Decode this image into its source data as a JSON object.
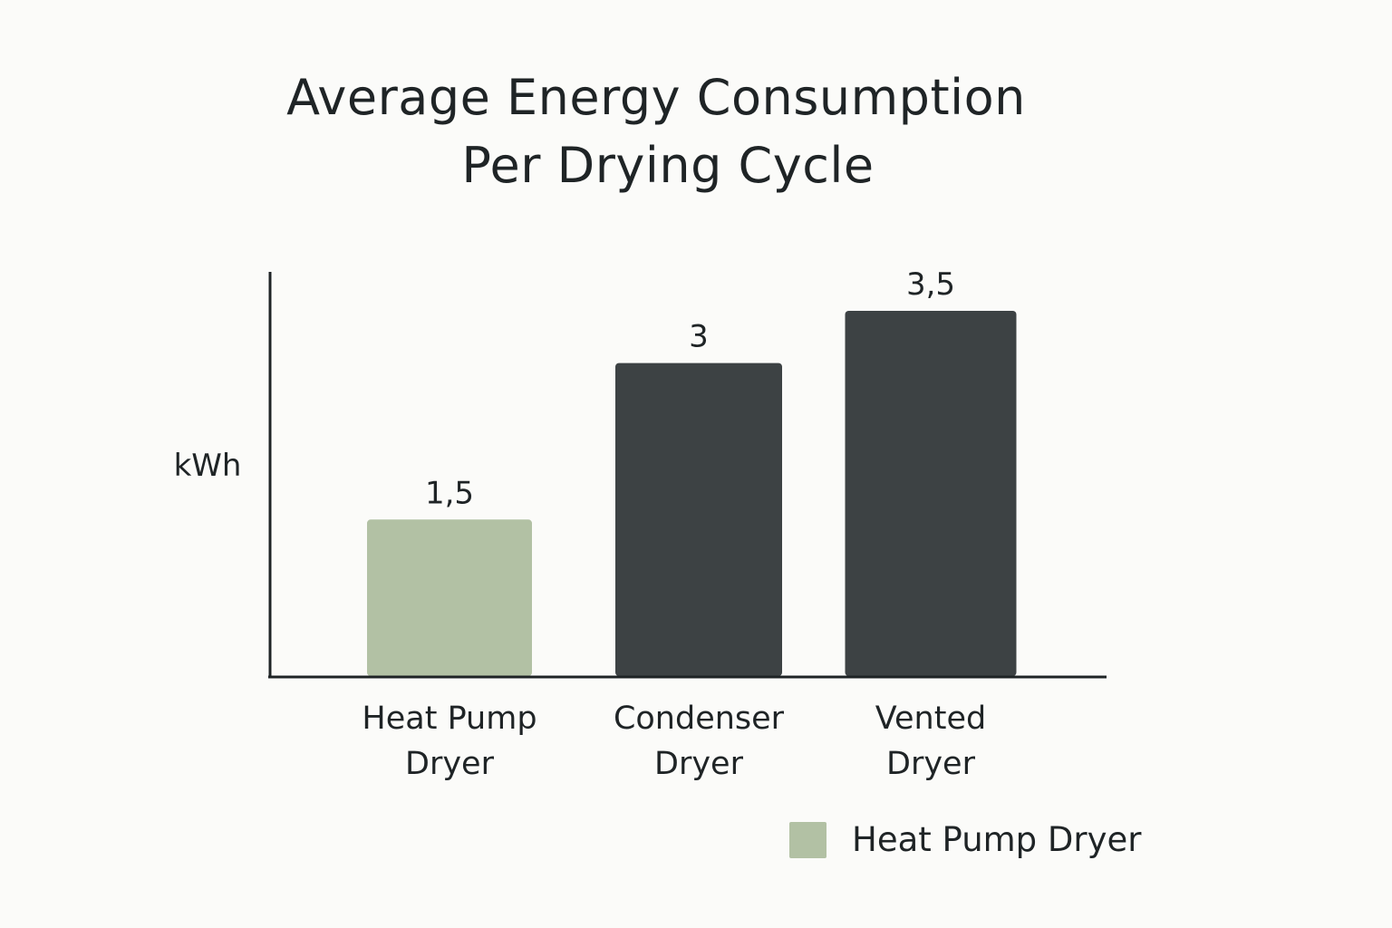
{
  "chart_data": {
    "type": "bar",
    "title": [
      "Average Energy Consumption",
      "Per Drying Cycle"
    ],
    "xlabel": "",
    "ylabel": "kWh",
    "categories": [
      [
        "Heat Pump",
        "Dryer"
      ],
      [
        "Condenser",
        "Dryer"
      ],
      [
        "Vented",
        "Dryer"
      ]
    ],
    "values": [
      1.5,
      3,
      3.5
    ],
    "value_labels": [
      "1,5",
      "3",
      "3,5"
    ],
    "bar_colors": [
      "#b2c1a4",
      "#3d4244",
      "#3d4244"
    ],
    "ylim": [
      0,
      3.5
    ],
    "grid": false,
    "legend": {
      "placement": "bottom-right",
      "entries": [
        {
          "label": "Heat Pump Dryer",
          "color": "#b2c1a4"
        }
      ]
    }
  },
  "colors": {
    "background": "#fbfbf9",
    "axis": "#1f2426",
    "text": "#1f2426"
  }
}
